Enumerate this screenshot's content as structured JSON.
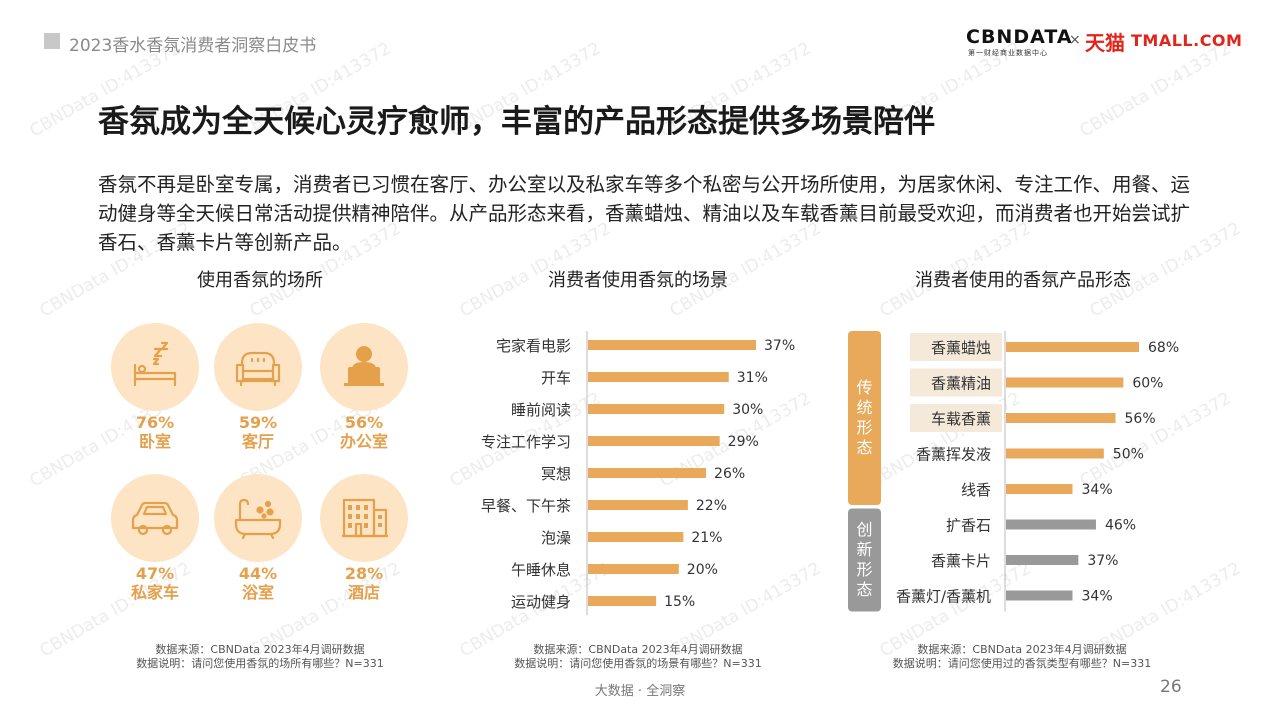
{
  "header": {
    "title": "2023香水香氛消费者洞察白皮书"
  },
  "logo": {
    "cbn": "CBNDATA",
    "cbn_sub": "第一财经商业数据中心",
    "times": "×",
    "tmall_cn": "天猫",
    "tmall_en": "TMALL.COM"
  },
  "main_title": "香氛成为全天候心灵疗愈师，丰富的产品形态提供多场景陪伴",
  "intro": "香氛不再是卧室专属，消费者已习惯在客厅、办公室以及私家车等多个私密与公开场所使用，为居家休闲、专注工作、用餐、运动健身等全天候日常活动提供精神陪伴。从产品形态来看，香薰蜡烛、精油以及车载香薰目前最受欢迎，而消费者也开始尝试扩香石、香薰卡片等创新产品。",
  "colors": {
    "accent": "#e5a04b",
    "bar_orange": "#e8a95a",
    "bar_gray": "#999999",
    "circle_bg": "#fde4c4",
    "label_bg": "#f5e9d9"
  },
  "chart_data": [
    {
      "type": "table",
      "title": "使用香氛的场所",
      "items": [
        {
          "label": "卧室",
          "value": 76,
          "value_text": "76%",
          "icon": "bed-icon"
        },
        {
          "label": "客厅",
          "value": 59,
          "value_text": "59%",
          "icon": "sofa-icon"
        },
        {
          "label": "办公室",
          "value": 56,
          "value_text": "56%",
          "icon": "office-desk-icon"
        },
        {
          "label": "私家车",
          "value": 47,
          "value_text": "47%",
          "icon": "car-icon"
        },
        {
          "label": "浴室",
          "value": 44,
          "value_text": "44%",
          "icon": "bathtub-icon"
        },
        {
          "label": "酒店",
          "value": 28,
          "value_text": "28%",
          "icon": "hotel-icon"
        }
      ],
      "source_line1": "数据来源：CBNData 2023年4月调研数据",
      "source_line2": "数据说明：请问您使用香氛的场所有哪些？N=331"
    },
    {
      "type": "bar",
      "orientation": "horizontal",
      "title": "消费者使用香氛的场景",
      "categories": [
        "宅家看电影",
        "开车",
        "睡前阅读",
        "专注工作学习",
        "冥想",
        "早餐、下午茶",
        "泡澡",
        "午睡休息",
        "运动健身"
      ],
      "values": [
        37,
        31,
        30,
        29,
        26,
        22,
        21,
        20,
        15
      ],
      "value_labels": [
        "37%",
        "31%",
        "30%",
        "29%",
        "26%",
        "22%",
        "21%",
        "20%",
        "15%"
      ],
      "source_line1": "数据来源：CBNData 2023年4月调研数据",
      "source_line2": "数据说明：请问您使用香氛的场景有哪些？N=331"
    },
    {
      "type": "bar",
      "orientation": "horizontal",
      "title": "消费者使用的香氛产品形态",
      "groups": [
        {
          "label": "传统形态",
          "color": "#e8a95a"
        },
        {
          "label": "创新形态",
          "color": "#999999"
        }
      ],
      "categories": [
        "香薰蜡烛",
        "香薰精油",
        "车载香薰",
        "香薰挥发液",
        "线香",
        "扩香石",
        "香薰卡片",
        "香薰灯/香薰机"
      ],
      "values": [
        68,
        60,
        56,
        50,
        34,
        46,
        37,
        34
      ],
      "value_labels": [
        "68%",
        "60%",
        "56%",
        "50%",
        "34%",
        "46%",
        "37%",
        "34%"
      ],
      "group_index": [
        0,
        0,
        0,
        0,
        0,
        1,
        1,
        1
      ],
      "highlighted": [
        true,
        true,
        true,
        false,
        false,
        false,
        false,
        false
      ],
      "source_line1": "数据来源：CBNData 2023年4月调研数据",
      "source_line2": "数据说明：请问您使用过的香氛类型有哪些？N=331"
    }
  ],
  "footer": {
    "center": "大数据 · 全洞察",
    "page": "26"
  },
  "watermark_text": "CBNData ID:413372"
}
